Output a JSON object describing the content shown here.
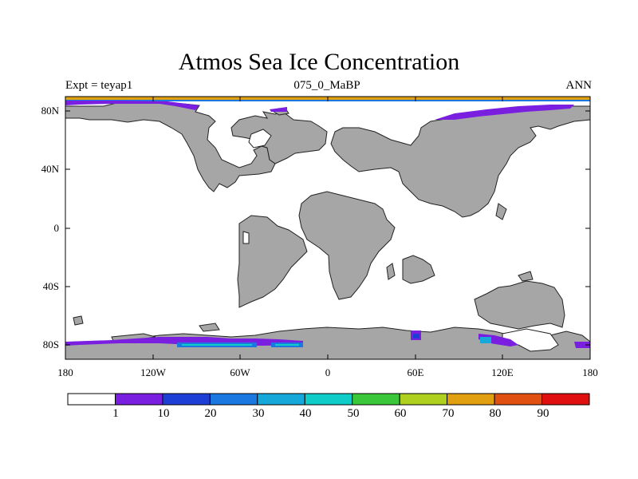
{
  "title": "Atmos Sea Ice Concentration",
  "subtitle_left": "Expt = teyap1",
  "subtitle_center": "075_0_MaBP",
  "subtitle_right": "ANN",
  "y_ticks": [
    "80N",
    "40N",
    "0",
    "40S",
    "80S"
  ],
  "x_ticks": [
    "180",
    "120W",
    "60W",
    "0",
    "60E",
    "120E",
    "180"
  ],
  "colorbar": {
    "colors": [
      "#ffffff",
      "#7a1fe0",
      "#1e3fd6",
      "#1a78e0",
      "#16a8d8",
      "#10ccc8",
      "#3ac83a",
      "#b0d020",
      "#e0a010",
      "#e05010",
      "#e01010"
    ],
    "labels": [
      "1",
      "10",
      "20",
      "30",
      "40",
      "50",
      "60",
      "70",
      "80",
      "90"
    ]
  },
  "map": {
    "land_color": "#a6a6a6",
    "ocean_color": "#ffffff",
    "ice_color": "#7a1fe0",
    "ice_dense_color": "#1e3fd6",
    "ice_light_color": "#16a8d8"
  }
}
